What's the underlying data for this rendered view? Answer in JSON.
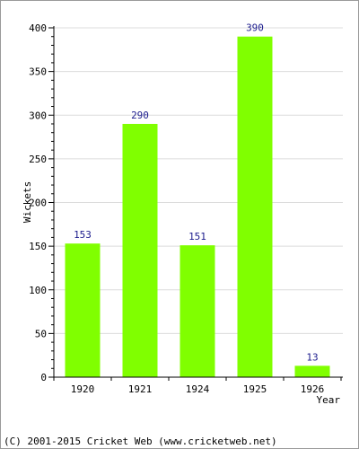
{
  "chart_data": {
    "type": "bar",
    "categories": [
      "1920",
      "1921",
      "1924",
      "1925",
      "1926"
    ],
    "values": [
      153,
      290,
      151,
      390,
      13
    ],
    "xlabel": "Year",
    "ylabel": "Wickets",
    "ylim": [
      0,
      400
    ],
    "yticks": [
      0,
      50,
      100,
      150,
      200,
      250,
      300,
      350,
      400
    ],
    "grid": true,
    "bar_color": "#80ff00",
    "data_label_color": "#1a1a8c"
  },
  "footer": {
    "copyright": "(C) 2001-2015 Cricket Web (www.cricketweb.net)"
  }
}
